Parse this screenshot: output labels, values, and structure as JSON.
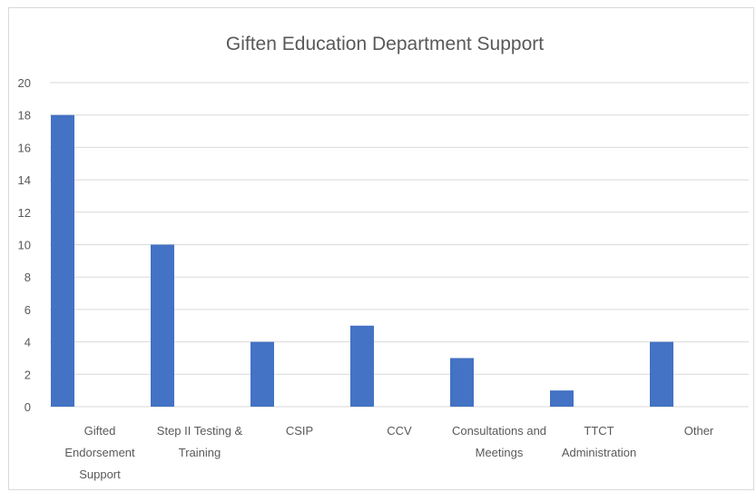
{
  "chart_data": {
    "type": "bar",
    "title": "Giften Education Department Support",
    "categories": [
      [
        "Gifted",
        "Endorsement",
        "Support"
      ],
      [
        "Step II Testing &",
        "Training"
      ],
      [
        "CSIP"
      ],
      [
        "CCV"
      ],
      [
        "Consultations and",
        "Meetings"
      ],
      [
        "TTCT",
        "Administration"
      ],
      [
        "Other"
      ]
    ],
    "values": [
      18,
      10,
      4,
      5,
      3,
      1,
      4
    ],
    "ylim": [
      0,
      20
    ],
    "yticks": [
      0,
      2,
      4,
      6,
      8,
      10,
      12,
      14,
      16,
      18,
      20
    ],
    "grid": true,
    "bar_color": "#4472c4",
    "grid_color": "#d9d9d9"
  }
}
